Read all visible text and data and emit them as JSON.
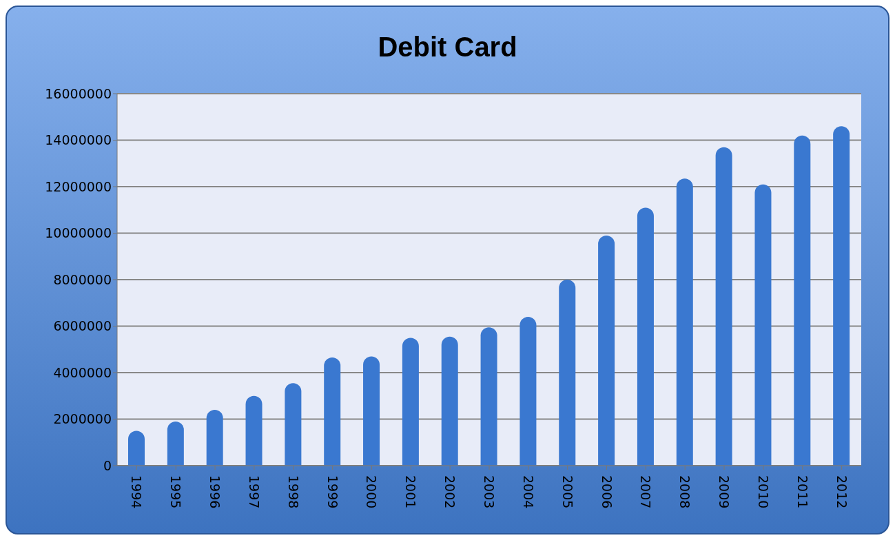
{
  "chart_data": {
    "type": "bar",
    "title": "Debit Card",
    "categories": [
      "1994",
      "1995",
      "1996",
      "1997",
      "1998",
      "1999",
      "2000",
      "2001",
      "2002",
      "2003",
      "2004",
      "2005",
      "2006",
      "2007",
      "2008",
      "2009",
      "2010",
      "2011",
      "2012"
    ],
    "values": [
      1500000,
      1900000,
      2400000,
      3000000,
      3550000,
      4650000,
      4700000,
      5500000,
      5550000,
      5950000,
      6400000,
      8000000,
      9900000,
      11100000,
      12350000,
      13700000,
      12100000,
      14200000,
      14600000
    ],
    "color": "#3a78d0",
    "ylim": [
      0,
      16000000
    ],
    "yticks": [
      0,
      2000000,
      4000000,
      6000000,
      8000000,
      10000000,
      12000000,
      14000000,
      16000000
    ],
    "grid": "y",
    "legend": false
  }
}
